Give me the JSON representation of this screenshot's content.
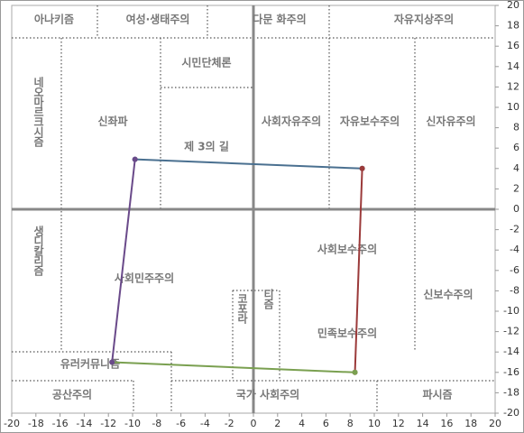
{
  "chart_data": {
    "type": "line",
    "series": [
      {
        "color": "#4a7090",
        "x": [
          -9.8,
          9
        ],
        "values": [
          4.9,
          4
        ]
      },
      {
        "color": "#9b3a3a",
        "x": [
          9,
          8.4
        ],
        "values": [
          4,
          -16
        ]
      },
      {
        "color": "#7aa050",
        "x": [
          8.4,
          -11.7
        ],
        "values": [
          -16,
          -15
        ]
      },
      {
        "color": "#6a4a8a",
        "x": [
          -11.7,
          -9.8
        ],
        "values": [
          -15,
          4.9
        ]
      }
    ],
    "xlim": [
      -20,
      20
    ],
    "ylim": [
      -20,
      20
    ],
    "xticks": [
      -20,
      -18,
      -16,
      -14,
      -12,
      -10,
      -8,
      -6,
      -4,
      -2,
      0,
      2,
      4,
      6,
      8,
      10,
      12,
      14,
      16,
      18,
      20
    ],
    "yticks": [
      -20,
      -18,
      -16,
      -14,
      -12,
      -10,
      -8,
      -6,
      -4,
      -2,
      0,
      2,
      4,
      6,
      8,
      10,
      12,
      14,
      16,
      18,
      20
    ],
    "annotations": [
      "아나키즘",
      "여성·생태주의",
      "다문 화주의",
      "자유지상주의",
      "시민단체론",
      "네오마르크시즘",
      "신좌파",
      "사회자유주의",
      "자유보수주의",
      "신자유주의",
      "제 3의 길",
      "사회보수주의",
      "생디칼리즘",
      "사회민주주의",
      "신보수주의",
      "코포라",
      "티즘",
      "민족보수주의",
      "유러커뮤니즘",
      "공산주의",
      "국가 사회주의",
      "파시즘"
    ]
  }
}
